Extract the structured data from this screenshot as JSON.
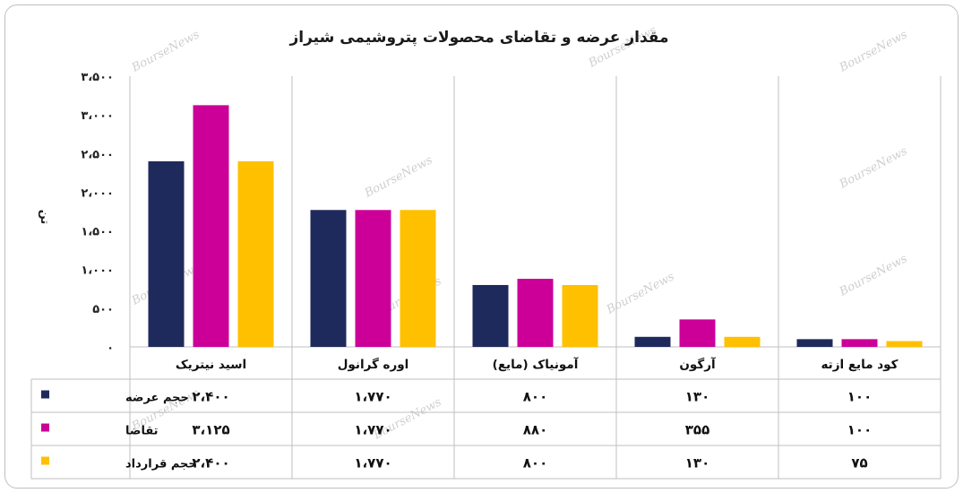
{
  "chart_data": {
    "type": "bar",
    "title": "مقدار عرضه و تقاضای محصولات پتروشیمی شیراز",
    "ylabel": "تن",
    "ylim": [
      0,
      3500
    ],
    "yticks": [
      0,
      500,
      1000,
      1500,
      2000,
      2500,
      3000,
      3500
    ],
    "ytick_labels": [
      "۰",
      "۵۰۰",
      "۱،۰۰۰",
      "۱،۵۰۰",
      "۲،۰۰۰",
      "۲،۵۰۰",
      "۳،۰۰۰",
      "۳،۵۰۰"
    ],
    "grid": "vertical-separators",
    "categories": [
      "اسید نیتریک",
      "اوره گرانول",
      "آمونیاک (مایع)",
      "آرگون",
      "کود مایع ازته"
    ],
    "series": [
      {
        "name": "حجم عرضه",
        "color": "#1f2a5c",
        "values": [
          2400,
          1770,
          800,
          130,
          100
        ],
        "labels": [
          "۲،۴۰۰",
          "۱،۷۷۰",
          "۸۰۰",
          "۱۳۰",
          "۱۰۰"
        ]
      },
      {
        "name": "تقاضا",
        "color": "#cc0099",
        "values": [
          3125,
          1770,
          880,
          355,
          100
        ],
        "labels": [
          "۳،۱۲۵",
          "۱،۷۷۰",
          "۸۸۰",
          "۳۵۵",
          "۱۰۰"
        ]
      },
      {
        "name": "حجم قرارداد",
        "color": "#ffc000",
        "values": [
          2400,
          1770,
          800,
          130,
          75
        ],
        "labels": [
          "۲،۴۰۰",
          "۱،۷۷۰",
          "۸۰۰",
          "۱۳۰",
          "۷۵"
        ]
      }
    ],
    "watermark": "BourseNews"
  }
}
